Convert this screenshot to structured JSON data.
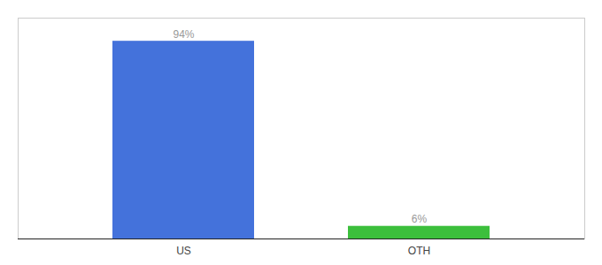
{
  "chart_data": {
    "type": "bar",
    "categories": [
      "US",
      "OTH"
    ],
    "values": [
      94,
      6
    ],
    "value_labels": [
      "94%",
      "6%"
    ],
    "colors": [
      "#4472db",
      "#3cbf3c"
    ],
    "ylim": [
      0,
      105
    ],
    "data_labels": true,
    "tick_labels": "x"
  }
}
